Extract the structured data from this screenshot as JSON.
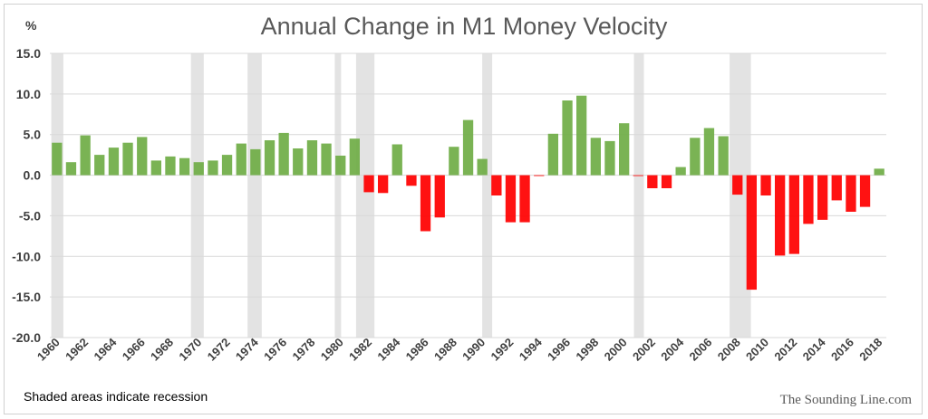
{
  "chart_data": {
    "type": "bar",
    "title": "Annual Change in M1 Money Velocity",
    "ylabel": "%",
    "xlabel": "",
    "ylim": [
      -20,
      15
    ],
    "yticks": [
      "15.0",
      "10.0",
      "5.0",
      "0.0",
      "-5.0",
      "-10.0",
      "-15.0",
      "-20.0"
    ],
    "ytick_values": [
      15,
      10,
      5,
      0,
      -5,
      -10,
      -15,
      -20
    ],
    "x_start_year": 1960,
    "x_tick_labels": [
      "1960",
      "1962",
      "1964",
      "1966",
      "1968",
      "1970",
      "1972",
      "1974",
      "1976",
      "1978",
      "1980",
      "1982",
      "1984",
      "1986",
      "1988",
      "1990",
      "1992",
      "1994",
      "1996",
      "1998",
      "2000",
      "2002",
      "2004",
      "2006",
      "2008",
      "2010",
      "2012",
      "2014",
      "2016",
      "2018"
    ],
    "categories": [
      "1960",
      "1961",
      "1962",
      "1963",
      "1964",
      "1965",
      "1966",
      "1967",
      "1968",
      "1969",
      "1970",
      "1971",
      "1972",
      "1973",
      "1974",
      "1975",
      "1976",
      "1977",
      "1978",
      "1979",
      "1980",
      "1981",
      "1982",
      "1983",
      "1984",
      "1985",
      "1986",
      "1987",
      "1988",
      "1989",
      "1990",
      "1991",
      "1992",
      "1993",
      "1994",
      "1995",
      "1996",
      "1997",
      "1998",
      "1999",
      "2000",
      "2001",
      "2002",
      "2003",
      "2004",
      "2005",
      "2006",
      "2007",
      "2008",
      "2009",
      "2010",
      "2011",
      "2012",
      "2013",
      "2014",
      "2015",
      "2016",
      "2017",
      "2018"
    ],
    "values": [
      4.0,
      1.6,
      4.9,
      2.5,
      3.4,
      4.0,
      4.7,
      1.8,
      2.3,
      2.1,
      1.6,
      1.8,
      2.5,
      3.9,
      3.2,
      4.3,
      5.2,
      3.3,
      4.3,
      3.9,
      2.4,
      4.5,
      -2.1,
      -2.2,
      3.8,
      -1.3,
      -6.9,
      -5.2,
      3.5,
      6.8,
      2.0,
      -2.5,
      -5.8,
      -5.8,
      -0.1,
      5.1,
      9.2,
      9.8,
      4.6,
      4.2,
      6.4,
      -0.1,
      -1.6,
      -1.6,
      1.0,
      4.6,
      5.8,
      4.8,
      -2.4,
      -14.1,
      -2.5,
      -9.9,
      -9.7,
      -6.0,
      -5.5,
      -3.1,
      -4.5,
      -3.9,
      0.8
    ],
    "positive_color": "#70ad47",
    "negative_color": "#ff0000",
    "recession_color": "#e3e3e3",
    "recessions": [
      [
        1960.1,
        1960.95
      ],
      [
        1969.95,
        1970.85
      ],
      [
        1973.95,
        1974.95
      ],
      [
        1980.1,
        1980.55
      ],
      [
        1981.6,
        1982.9
      ],
      [
        1990.5,
        1991.2
      ],
      [
        2001.2,
        2001.9
      ],
      [
        2007.95,
        2009.45
      ]
    ],
    "grid": true,
    "note": "Shaded areas indicate recession",
    "credit": "The Sounding Line.com"
  }
}
